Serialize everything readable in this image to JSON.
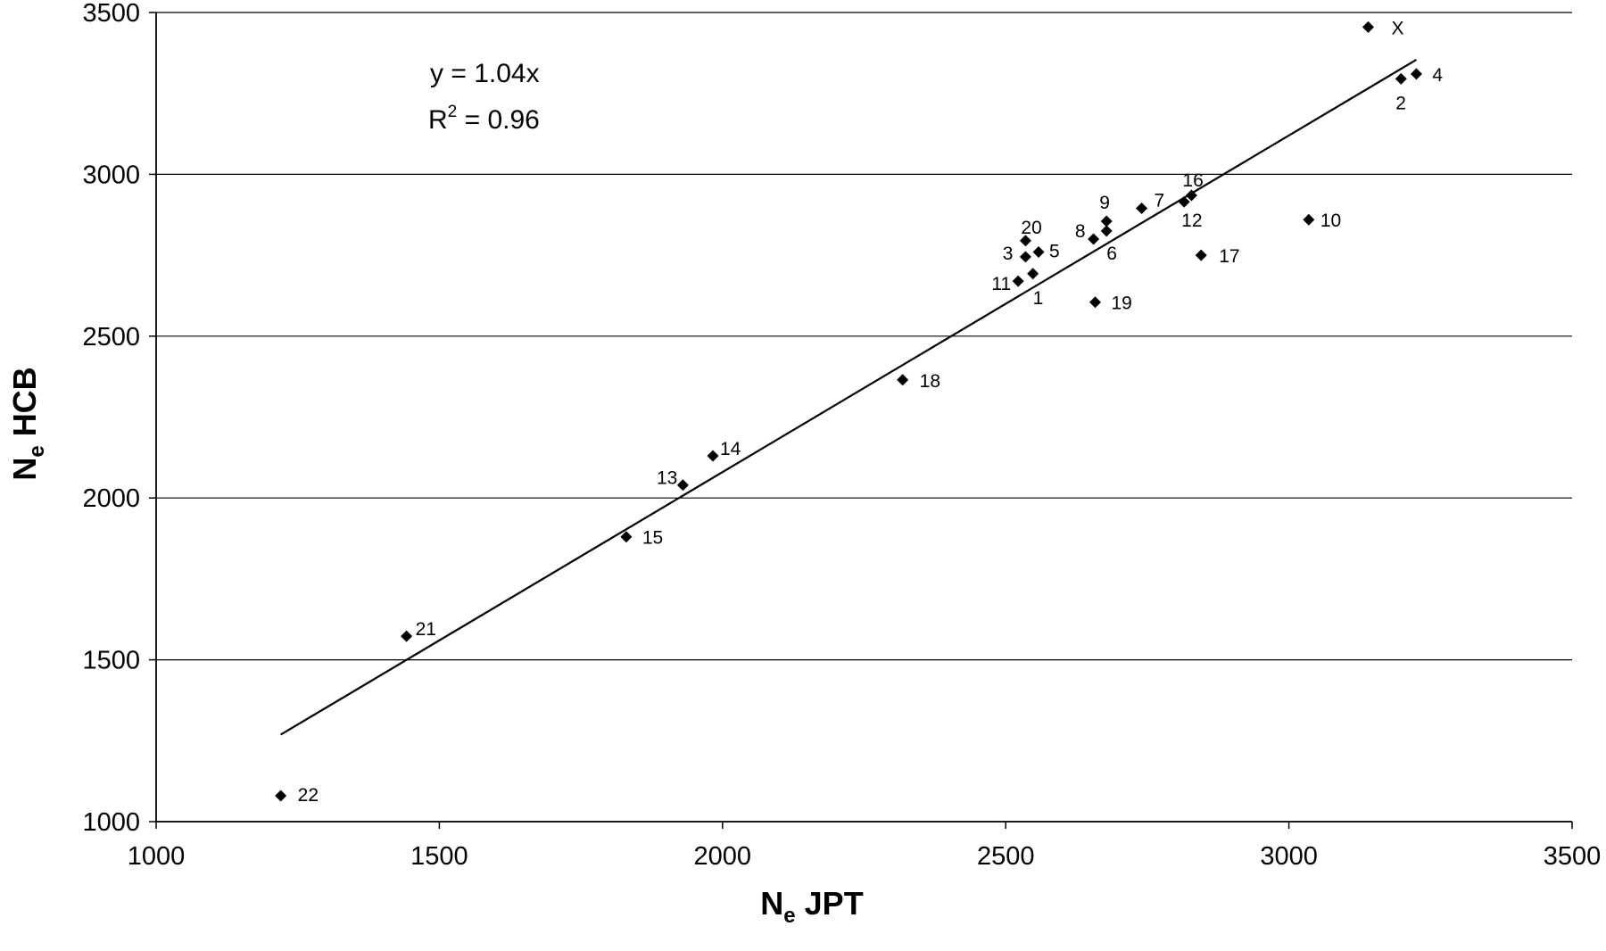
{
  "chart_data": {
    "type": "scatter",
    "title": "",
    "xlabel": {
      "main": "N",
      "sub": "e",
      "rest": " JPT"
    },
    "ylabel": {
      "main": "N",
      "sub": "e",
      "rest": " HCB"
    },
    "xlim": [
      1000,
      3500
    ],
    "ylim": [
      1000,
      3500
    ],
    "xticks": [
      1000,
      1500,
      2000,
      2500,
      3000,
      3500
    ],
    "yticks": [
      1000,
      1500,
      2000,
      2500,
      3000,
      3500
    ],
    "grid": "horizontal",
    "legend": "none",
    "marker": "diamond",
    "marker_color": "#000000",
    "annotation": {
      "equation": "y = 1.04x",
      "r2_base": "R",
      "r2_exp": "2",
      "r2_value": " = 0.96"
    },
    "trendline": {
      "slope": 1.04,
      "x_start": 1220,
      "x_end": 3225
    },
    "points": [
      {
        "label": "X",
        "x": 3140,
        "y": 3455
      },
      {
        "label": "4",
        "x": 3225,
        "y": 3310
      },
      {
        "label": "2",
        "x": 3198,
        "y": 3295
      },
      {
        "label": "16",
        "x": 2828,
        "y": 2935
      },
      {
        "label": "12",
        "x": 2815,
        "y": 2915
      },
      {
        "label": "7",
        "x": 2740,
        "y": 2895
      },
      {
        "label": "9",
        "x": 2678,
        "y": 2855
      },
      {
        "label": "6",
        "x": 2678,
        "y": 2825
      },
      {
        "label": "8",
        "x": 2655,
        "y": 2800
      },
      {
        "label": "20",
        "x": 2535,
        "y": 2795
      },
      {
        "label": "3",
        "x": 2535,
        "y": 2745
      },
      {
        "label": "5",
        "x": 2558,
        "y": 2760
      },
      {
        "label": "11",
        "x": 2522,
        "y": 2670
      },
      {
        "label": "1",
        "x": 2548,
        "y": 2693
      },
      {
        "label": "10",
        "x": 3035,
        "y": 2860
      },
      {
        "label": "17",
        "x": 2845,
        "y": 2750
      },
      {
        "label": "19",
        "x": 2658,
        "y": 2605
      },
      {
        "label": "18",
        "x": 2318,
        "y": 2365
      },
      {
        "label": "14",
        "x": 1983,
        "y": 2130
      },
      {
        "label": "13",
        "x": 1930,
        "y": 2040
      },
      {
        "label": "15",
        "x": 1830,
        "y": 1880
      },
      {
        "label": "21",
        "x": 1442,
        "y": 1573
      },
      {
        "label": "22",
        "x": 1220,
        "y": 1080
      }
    ]
  }
}
